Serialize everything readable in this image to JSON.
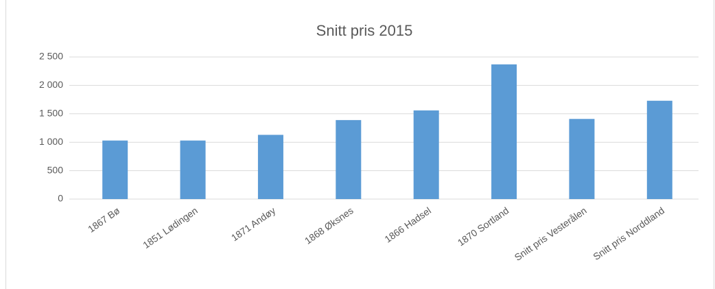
{
  "chart_data": {
    "type": "bar",
    "title": "Snitt pris 2015",
    "categories": [
      "1867 Bø",
      "1851 Lødingen",
      "1871 Andøy",
      "1868 Øksnes",
      "1866 Hadsel",
      "1870 Sortland",
      "Snitt pris Vesterålen",
      "Snitt pris Norddland"
    ],
    "values": [
      1030,
      1030,
      1130,
      1390,
      1560,
      2370,
      1410,
      1730
    ],
    "color": "#5b9bd5",
    "ylim": [
      0,
      2500
    ],
    "yticks": [
      0,
      500,
      {
        "value": 1000,
        "label": "1 000"
      },
      {
        "value": 1500,
        "label": "1 500"
      },
      {
        "value": 2000,
        "label": "2 000"
      },
      {
        "value": 2500,
        "label": "2 500"
      }
    ],
    "grid": true
  }
}
